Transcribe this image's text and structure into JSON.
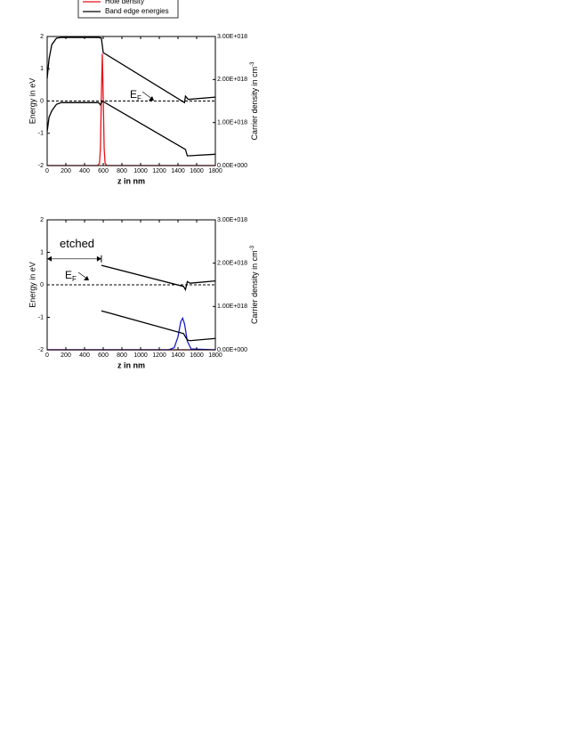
{
  "chart_data": [
    {
      "type": "line",
      "legend": "top",
      "xlabel": "z in nm",
      "ylabel": "Energy in eV",
      "y2label": {
        "text": "Carrier density in cm",
        "superscript": "-3"
      },
      "xlim": [
        0,
        1800
      ],
      "xticks": [
        0,
        200,
        400,
        600,
        800,
        1000,
        1200,
        1400,
        1600,
        1800
      ],
      "ylim": [
        -2,
        2
      ],
      "yticks": [
        -2,
        -1,
        0,
        1,
        2
      ],
      "y2lim": [
        0,
        3e+18
      ],
      "y2ticks": [
        {
          "value": 0,
          "label": "0.00E+000"
        },
        {
          "value": 1e+18,
          "label": "1.00E+018"
        },
        {
          "value": 2e+18,
          "label": "2.00E+018"
        },
        {
          "value": 3e+18,
          "label": "3.00E+018"
        }
      ],
      "fermi_level": 0,
      "annotations": [
        {
          "text": "E",
          "subscript": "F"
        }
      ],
      "series": [
        {
          "name": "Hole density",
          "color": "#e8121b",
          "axis": "y2",
          "x": [
            0,
            540,
            560,
            570,
            580,
            590,
            600,
            610,
            620,
            640,
            1800
          ],
          "values": [
            0,
            0,
            5e+16,
            4e+17,
            1.6e+18,
            2.6e+18,
            1.6e+18,
            4e+17,
            5e+16,
            0,
            0
          ]
        },
        {
          "name": "Band edge energies",
          "color": "#000000",
          "x": [
            0,
            20,
            50,
            100,
            150,
            550,
            580,
            600,
            1470,
            1480,
            1510,
            1800
          ],
          "values": [
            0.7,
            1.3,
            1.75,
            1.95,
            1.97,
            1.97,
            1.95,
            1.5,
            -0.05,
            0.15,
            0.05,
            0.12
          ]
        },
        {
          "color": "#000000",
          "x": [
            0,
            20,
            50,
            100,
            150,
            550,
            570,
            590,
            1480,
            1500,
            1800
          ],
          "values": [
            -0.95,
            -0.5,
            -0.3,
            -0.1,
            -0.05,
            -0.05,
            -0.12,
            0.0,
            -1.5,
            -1.7,
            -1.65
          ]
        }
      ]
    },
    {
      "type": "line",
      "xlabel": "z in nm",
      "ylabel": "Energy in eV",
      "y2label": {
        "text": "Carrier density in cm",
        "superscript": "-3"
      },
      "xlim": [
        0,
        1800
      ],
      "xticks": [
        0,
        200,
        400,
        600,
        800,
        1000,
        1200,
        1400,
        1600,
        1800
      ],
      "ylim": [
        -2,
        2
      ],
      "yticks": [
        -2,
        -1,
        0,
        1,
        2
      ],
      "y2lim": [
        0,
        3e+18
      ],
      "y2ticks": [
        {
          "value": 0,
          "label": "0.00E+000"
        },
        {
          "value": 1e+18,
          "label": "1.00E+018"
        },
        {
          "value": 2e+18,
          "label": "2.00E+018"
        },
        {
          "value": 3e+18,
          "label": "3.00E+018"
        }
      ],
      "fermi_level": 0,
      "annotations": [
        {
          "text": "E",
          "subscript": "F"
        }
      ],
      "etched": {
        "label": "etched",
        "range": [
          0,
          580
        ],
        "y": 0.8
      },
      "series": [
        {
          "color": "#e8121b",
          "axis": "y2",
          "x": [
            0,
            1800
          ],
          "values": [
            0,
            0
          ]
        },
        {
          "color": "#1c1ccf",
          "axis": "y2",
          "x": [
            0,
            1300,
            1360,
            1400,
            1430,
            1450,
            1470,
            1500,
            1540,
            1800
          ],
          "values": [
            0,
            0,
            5e+16,
            3e+17,
            6.5e+17,
            7.3e+17,
            6e+17,
            2e+17,
            2e+16,
            0
          ]
        },
        {
          "color": "#000000",
          "x": [
            580,
            1460,
            1480,
            1500,
            1530,
            1800
          ],
          "values": [
            0.6,
            -0.05,
            -0.15,
            0.1,
            0.05,
            0.12
          ]
        },
        {
          "color": "#000000",
          "x": [
            580,
            1460,
            1500,
            1530,
            1800
          ],
          "values": [
            -0.8,
            -1.5,
            -1.7,
            -1.72,
            -1.65
          ]
        }
      ]
    }
  ]
}
